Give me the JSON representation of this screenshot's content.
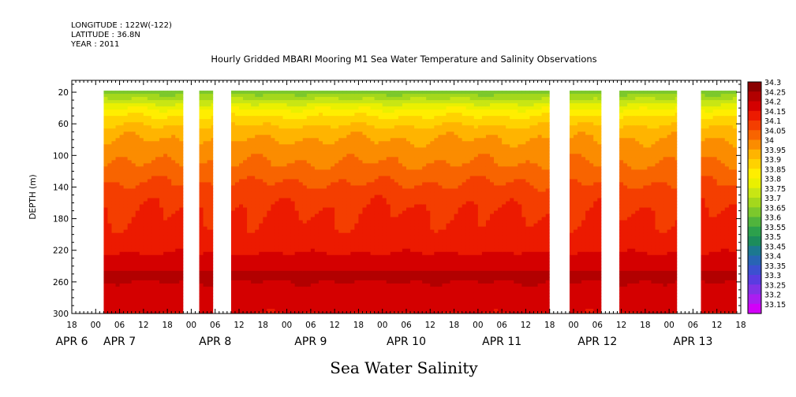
{
  "header": {
    "longitude": "LONGITUDE : 122W(-122)",
    "latitude": "LATITUDE : 36.8N",
    "year": "YEAR : 2011"
  },
  "chart_data": {
    "type": "heatmap",
    "title": "Hourly Gridded MBARI Mooring M1 Sea Water Temperature and Salinity Observations",
    "xlabel": "Sea Water Salinity",
    "ylabel": "DEPTH (m)",
    "x_unit": "hours since 2011-04-06 00:00",
    "xlim": [
      18,
      186
    ],
    "ylim": [
      300,
      5
    ],
    "y_ticks": [
      20,
      60,
      100,
      140,
      180,
      220,
      260,
      300
    ],
    "x_hour_ticks": [
      "18",
      "00",
      "06",
      "12",
      "18",
      "00",
      "06",
      "12",
      "18",
      "00",
      "06",
      "12",
      "18",
      "00",
      "06",
      "12",
      "18",
      "00",
      "06",
      "12",
      "18",
      "00",
      "06",
      "12",
      "18",
      "00",
      "06",
      "12",
      "18"
    ],
    "x_day_labels": [
      {
        "text": "APR  6",
        "hour": 18
      },
      {
        "text": "APR  7",
        "hour": 30
      },
      {
        "text": "APR  8",
        "hour": 54
      },
      {
        "text": "APR  9",
        "hour": 78
      },
      {
        "text": "APR 10",
        "hour": 102
      },
      {
        "text": "APR 11",
        "hour": 126
      },
      {
        "text": "APR 12",
        "hour": 150
      },
      {
        "text": "APR 13",
        "hour": 174
      }
    ],
    "data_segments": [
      {
        "start_hour": 26,
        "end_hour": 46
      },
      {
        "start_hour": 50,
        "end_hour": 53.5
      },
      {
        "start_hour": 58,
        "end_hour": 138
      },
      {
        "start_hour": 143,
        "end_hour": 151
      },
      {
        "start_hour": 155.5,
        "end_hour": 170
      },
      {
        "start_hour": 176,
        "end_hour": 185
      }
    ],
    "depth_profile": [
      {
        "depth": 10,
        "salinity": 33.62
      },
      {
        "depth": 20,
        "salinity": 33.68
      },
      {
        "depth": 30,
        "salinity": 33.76
      },
      {
        "depth": 40,
        "salinity": 33.84
      },
      {
        "depth": 50,
        "salinity": 33.9
      },
      {
        "depth": 60,
        "salinity": 33.94
      },
      {
        "depth": 70,
        "salinity": 33.98
      },
      {
        "depth": 90,
        "salinity": 34.02
      },
      {
        "depth": 110,
        "salinity": 34.05
      },
      {
        "depth": 130,
        "salinity": 34.09
      },
      {
        "depth": 150,
        "salinity": 34.13
      },
      {
        "depth": 170,
        "salinity": 34.15
      },
      {
        "depth": 190,
        "salinity": 34.16
      },
      {
        "depth": 210,
        "salinity": 34.18
      },
      {
        "depth": 230,
        "salinity": 34.21
      },
      {
        "depth": 245,
        "salinity": 34.24
      },
      {
        "depth": 252,
        "salinity": 34.28
      },
      {
        "depth": 260,
        "salinity": 34.25
      },
      {
        "depth": 270,
        "salinity": 34.24
      },
      {
        "depth": 285,
        "salinity": 34.22
      },
      {
        "depth": 300,
        "salinity": 34.2
      }
    ],
    "colorbar": {
      "levels": [
        "34.3",
        "34.25",
        "34.2",
        "34.15",
        "34.1",
        "34.05",
        "34",
        "33.95",
        "33.9",
        "33.85",
        "33.8",
        "33.75",
        "33.7",
        "33.65",
        "33.6",
        "33.55",
        "33.5",
        "33.45",
        "33.4",
        "33.35",
        "33.3",
        "33.25",
        "33.2",
        "33.15"
      ],
      "colors": [
        "#8a0000",
        "#b20000",
        "#d40000",
        "#ec1a00",
        "#f43e00",
        "#f86400",
        "#fb8c00",
        "#ffb400",
        "#ffd200",
        "#ffee00",
        "#eaf000",
        "#c8e614",
        "#a4d81c",
        "#7cc82c",
        "#50b43c",
        "#2ca04c",
        "#1c8c5c",
        "#1c7890",
        "#2864b4",
        "#3c50d0",
        "#5a3ce0",
        "#8232e6",
        "#aa1ef0",
        "#d200f8"
      ]
    }
  }
}
